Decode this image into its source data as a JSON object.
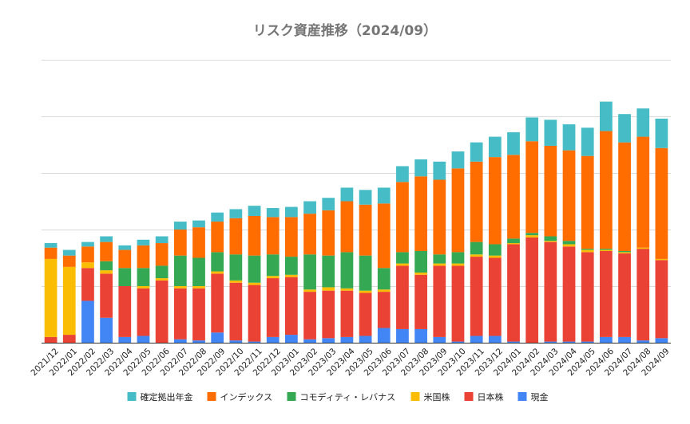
{
  "chart_data": {
    "type": "bar",
    "stacked": true,
    "title": "リスク資産推移（2024/09）",
    "xlabel": "",
    "ylabel": "",
    "ylim": [
      0,
      250
    ],
    "y_ticks": [
      0,
      50,
      100,
      150,
      200,
      250
    ],
    "y_tick_labels_visible": false,
    "grid": true,
    "legend_position": "bottom",
    "categories": [
      "2021/12",
      "2022/01",
      "2022/02",
      "2022/03",
      "2022/04",
      "2022/05",
      "2022/06",
      "2022/07",
      "2022/08",
      "2022/09",
      "2022/10",
      "2022/11",
      "2022/12",
      "2023/01",
      "2023/02",
      "2023/03",
      "2023/04",
      "2023/05",
      "2023/06",
      "2023/07",
      "2023/08",
      "2023/09",
      "2023/10",
      "2023/11",
      "2023/12",
      "2024/01",
      "2024/02",
      "2024/03",
      "2024/04",
      "2024/05",
      "2024/06",
      "2024/07",
      "2024/08",
      "2024/09"
    ],
    "series": [
      {
        "name": "現金",
        "color": "#4285f4",
        "values": [
          0,
          0,
          37,
          22,
          5,
          6,
          0,
          3,
          2,
          9,
          2,
          1,
          5,
          7,
          3,
          4,
          5,
          6,
          13,
          12,
          12,
          5,
          1,
          6,
          6,
          1,
          0,
          1,
          1,
          1,
          5,
          5,
          2,
          4
        ]
      },
      {
        "name": "日本株",
        "color": "#ea4335",
        "values": [
          5,
          7,
          29,
          39,
          45,
          42,
          55,
          45,
          46,
          52,
          51,
          50,
          52,
          51,
          42,
          42,
          41,
          38,
          32,
          56,
          48,
          63,
          67,
          70,
          69,
          86,
          93,
          88,
          84,
          79,
          76,
          74,
          81,
          69
        ]
      },
      {
        "name": "米国株",
        "color": "#fbbc04",
        "values": [
          69,
          60,
          5,
          3,
          0,
          2,
          2,
          2,
          2,
          2,
          2,
          2,
          2,
          2,
          2,
          3,
          2,
          2,
          2,
          2,
          2,
          2,
          2,
          2,
          2,
          1,
          2,
          1,
          2,
          2,
          1,
          1,
          1,
          1
        ]
      },
      {
        "name": "コモディティ・レバナス",
        "color": "#34a853",
        "values": [
          0,
          0,
          0,
          8,
          16,
          16,
          11,
          27,
          25,
          17,
          23,
          24,
          19,
          16,
          31,
          28,
          32,
          31,
          19,
          10,
          19,
          8,
          10,
          11,
          10,
          4,
          2,
          4,
          3,
          1,
          1,
          1,
          0,
          0
        ]
      },
      {
        "name": "インデックス",
        "color": "#ff6d01",
        "values": [
          10,
          10,
          14,
          17,
          16,
          20,
          20,
          23,
          27,
          27,
          32,
          35,
          33,
          35,
          36,
          40,
          45,
          45,
          57,
          62,
          66,
          66,
          74,
          71,
          77,
          74,
          81,
          80,
          80,
          82,
          104,
          96,
          98,
          98
        ]
      },
      {
        "name": "確定拠出年金",
        "color": "#46bdc6",
        "values": [
          4,
          5,
          4,
          5,
          4,
          5,
          6,
          7,
          6,
          8,
          8,
          9,
          8,
          9,
          11,
          11,
          12,
          13,
          14,
          14,
          15,
          16,
          15,
          17,
          18,
          20,
          21,
          23,
          23,
          25,
          26,
          25,
          25,
          26
        ]
      }
    ]
  }
}
